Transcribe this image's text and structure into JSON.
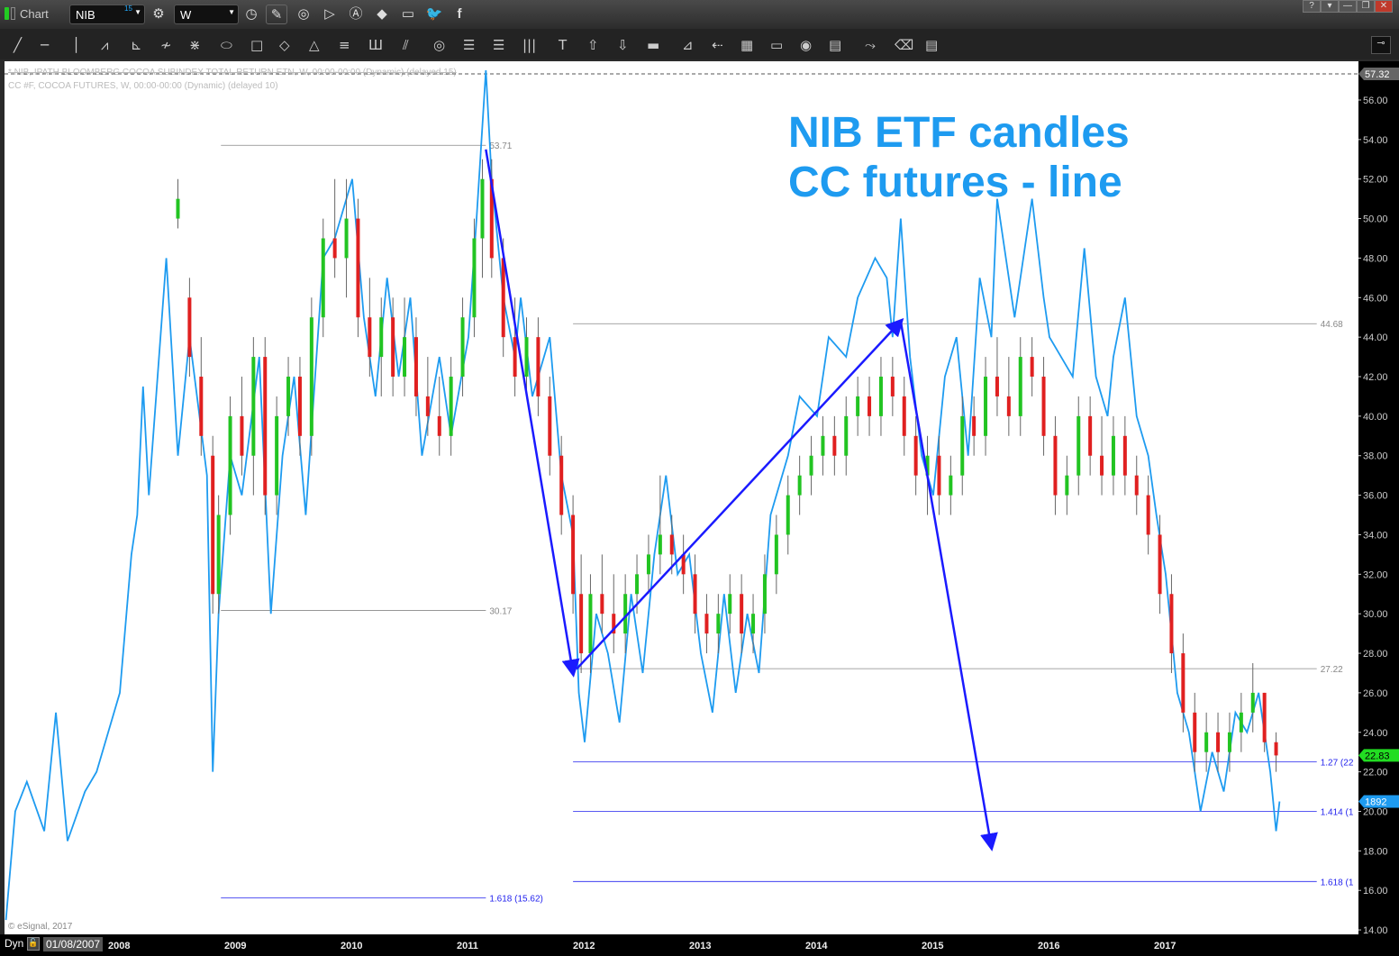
{
  "window": {
    "title": "Chart",
    "symbol": "NIB",
    "symbol_badge": "15",
    "interval": "W",
    "buttons": [
      "?",
      "▾",
      "—",
      "❐",
      "✕"
    ]
  },
  "toolbar_icons": [
    "line-tool",
    "horizontal-line-tool",
    "vertical-line-tool",
    "zigzag-tool",
    "fan-tool",
    "pitchfork-tool",
    "gann-fan-tool",
    "ellipse-tool",
    "rectangle-tool",
    "diamond-tool",
    "triangle-tool",
    "parallel-lines-tool",
    "cycle-lines-tool",
    "channel-tool",
    "circles-tool",
    "fib-retracement-tool",
    "time-lines-tool",
    "text-tool",
    "arrow-up-tool",
    "arrow-down-tool",
    "block-tool",
    "speed-lines-tool",
    "speed-arc-tool",
    "grid-tool",
    "mob-tool",
    "tj-tool",
    "pti-tool",
    "elliott-tool",
    "eraser-tool",
    "comment-tool",
    "magnet-tool"
  ],
  "legend": {
    "line1": "* NIB, IPATH BLOOMBERG COCOA SUBINDEX TOTAL RETURN ETN, W, 00:00-00:00 (Dynamic) (delayed 15)",
    "line2": "CC #F, COCOA FUTURES, W, 00:00-00:00 (Dynamic) (delayed 10)"
  },
  "annotation": {
    "line1": "NIB ETF candles",
    "line2": "CC futures - line",
    "color": "#1e9bf0"
  },
  "copyright": "© eSignal, 2017",
  "bottom": {
    "mode": "Dyn",
    "start_date": "01/08/2007"
  },
  "price_markers": {
    "high": "57.32",
    "nib_last": "22.83",
    "cc_last": "1892"
  },
  "colors": {
    "cc_line": "#1e9bf0",
    "up": "#22c422",
    "down": "#e02020",
    "neutral": "#777777",
    "arrow": "#1a1aff",
    "fib_gray": "#888888",
    "fib_blue": "#2222ee"
  },
  "chart_data": {
    "type": "line+candlestick",
    "y_ticks": [
      "14.00",
      "16.00",
      "18.00",
      "20.00",
      "22.00",
      "24.00",
      "26.00",
      "28.00",
      "30.00",
      "32.00",
      "34.00",
      "36.00",
      "38.00",
      "40.00",
      "42.00",
      "44.00",
      "46.00",
      "48.00",
      "50.00",
      "52.00",
      "54.00",
      "56.00"
    ],
    "x_ticks": [
      "2008",
      "2009",
      "2010",
      "2011",
      "2012",
      "2013",
      "2014",
      "2015",
      "2016",
      "2017"
    ],
    "ylim": [
      14,
      57.32
    ],
    "xlim": [
      2007.02,
      2018.6
    ],
    "fib_levels": [
      {
        "label": "53.71",
        "value": 53.71,
        "from": 2008.87,
        "to": 2011.15,
        "color": "gray"
      },
      {
        "label": "30.17",
        "value": 30.17,
        "from": 2008.87,
        "to": 2011.15,
        "color": "gray"
      },
      {
        "label": "1.618 (15.62)",
        "value": 15.62,
        "from": 2008.87,
        "to": 2011.15,
        "color": "blue"
      },
      {
        "label": "44.68",
        "value": 44.68,
        "from": 2011.9,
        "to": 2018.3,
        "color": "gray"
      },
      {
        "label": "27.22",
        "value": 27.22,
        "from": 2011.9,
        "to": 2018.3,
        "color": "gray"
      },
      {
        "label": "1.27 (22",
        "value": 22.5,
        "from": 2011.9,
        "to": 2018.3,
        "color": "blue"
      },
      {
        "label": "1.414 (1",
        "value": 20.0,
        "from": 2011.9,
        "to": 2018.3,
        "color": "blue"
      },
      {
        "label": "1.618 (1",
        "value": 16.45,
        "from": 2011.9,
        "to": 2018.3,
        "color": "blue"
      }
    ],
    "arrows": [
      [
        2011.15,
        53.5,
        2011.9,
        27.0
      ],
      [
        2011.93,
        27.2,
        2014.72,
        44.8
      ],
      [
        2014.72,
        44.8,
        2015.5,
        18.2
      ]
    ],
    "cc_line": [
      [
        2007.02,
        14.5
      ],
      [
        2007.1,
        20
      ],
      [
        2007.2,
        21.5
      ],
      [
        2007.35,
        19
      ],
      [
        2007.45,
        25
      ],
      [
        2007.55,
        18.5
      ],
      [
        2007.7,
        21
      ],
      [
        2007.8,
        22
      ],
      [
        2007.9,
        24
      ],
      [
        2008.0,
        26
      ],
      [
        2008.1,
        33
      ],
      [
        2008.15,
        35
      ],
      [
        2008.2,
        41.5
      ],
      [
        2008.25,
        36
      ],
      [
        2008.4,
        48
      ],
      [
        2008.5,
        38
      ],
      [
        2008.6,
        44
      ],
      [
        2008.75,
        37
      ],
      [
        2008.8,
        22
      ],
      [
        2008.85,
        30
      ],
      [
        2008.95,
        38
      ],
      [
        2009.05,
        36
      ],
      [
        2009.2,
        43
      ],
      [
        2009.3,
        30
      ],
      [
        2009.4,
        38
      ],
      [
        2009.5,
        42
      ],
      [
        2009.6,
        35
      ],
      [
        2009.75,
        48
      ],
      [
        2009.85,
        49
      ],
      [
        2010.0,
        52
      ],
      [
        2010.1,
        45
      ],
      [
        2010.2,
        41
      ],
      [
        2010.3,
        47
      ],
      [
        2010.4,
        42
      ],
      [
        2010.5,
        46
      ],
      [
        2010.6,
        38
      ],
      [
        2010.75,
        43
      ],
      [
        2010.85,
        39
      ],
      [
        2011.0,
        44
      ],
      [
        2011.07,
        50
      ],
      [
        2011.15,
        57.5
      ],
      [
        2011.2,
        52
      ],
      [
        2011.3,
        46
      ],
      [
        2011.4,
        43
      ],
      [
        2011.45,
        46
      ],
      [
        2011.55,
        41
      ],
      [
        2011.7,
        44
      ],
      [
        2011.8,
        37
      ],
      [
        2011.9,
        34
      ],
      [
        2011.95,
        26
      ],
      [
        2012.0,
        23.5
      ],
      [
        2012.1,
        30
      ],
      [
        2012.2,
        28
      ],
      [
        2012.3,
        24.5
      ],
      [
        2012.4,
        31
      ],
      [
        2012.5,
        27
      ],
      [
        2012.6,
        33
      ],
      [
        2012.7,
        37
      ],
      [
        2012.8,
        32
      ],
      [
        2012.9,
        33
      ],
      [
        2013.0,
        28
      ],
      [
        2013.1,
        25
      ],
      [
        2013.2,
        31
      ],
      [
        2013.3,
        26
      ],
      [
        2013.4,
        30
      ],
      [
        2013.5,
        27
      ],
      [
        2013.6,
        35
      ],
      [
        2013.75,
        38
      ],
      [
        2013.85,
        41
      ],
      [
        2014.0,
        40
      ],
      [
        2014.1,
        44
      ],
      [
        2014.25,
        43
      ],
      [
        2014.35,
        46
      ],
      [
        2014.5,
        48
      ],
      [
        2014.6,
        47
      ],
      [
        2014.65,
        44
      ],
      [
        2014.72,
        50
      ],
      [
        2014.8,
        43
      ],
      [
        2014.9,
        38
      ],
      [
        2015.0,
        36
      ],
      [
        2015.1,
        42
      ],
      [
        2015.2,
        44
      ],
      [
        2015.3,
        38
      ],
      [
        2015.4,
        47
      ],
      [
        2015.5,
        44
      ],
      [
        2015.55,
        51
      ],
      [
        2015.7,
        45
      ],
      [
        2015.85,
        51
      ],
      [
        2015.95,
        46
      ],
      [
        2016.0,
        44
      ],
      [
        2016.2,
        42
      ],
      [
        2016.3,
        48.5
      ],
      [
        2016.4,
        42
      ],
      [
        2016.5,
        40
      ],
      [
        2016.55,
        43
      ],
      [
        2016.65,
        46
      ],
      [
        2016.75,
        40
      ],
      [
        2016.85,
        38
      ],
      [
        2016.92,
        35
      ],
      [
        2017.0,
        32
      ],
      [
        2017.1,
        26
      ],
      [
        2017.2,
        24
      ],
      [
        2017.3,
        20
      ],
      [
        2017.4,
        23
      ],
      [
        2017.5,
        21
      ],
      [
        2017.6,
        25
      ],
      [
        2017.7,
        24
      ],
      [
        2017.8,
        26
      ],
      [
        2017.9,
        22
      ],
      [
        2017.95,
        19
      ],
      [
        2017.98,
        20.5
      ]
    ],
    "nib_candles": [
      [
        2008.5,
        50,
        52,
        49.5,
        51
      ],
      [
        2008.6,
        46,
        47,
        42,
        43
      ],
      [
        2008.7,
        42,
        44,
        38,
        39
      ],
      [
        2008.8,
        38,
        39,
        30,
        31
      ],
      [
        2008.85,
        31,
        36,
        30,
        35
      ],
      [
        2008.95,
        35,
        41,
        34,
        40
      ],
      [
        2009.05,
        40,
        42,
        37,
        38
      ],
      [
        2009.15,
        38,
        44,
        36,
        43
      ],
      [
        2009.25,
        43,
        44,
        35,
        36
      ],
      [
        2009.35,
        36,
        41,
        35,
        40
      ],
      [
        2009.45,
        40,
        43,
        39,
        42
      ],
      [
        2009.55,
        42,
        43,
        38,
        39
      ],
      [
        2009.65,
        39,
        46,
        38,
        45
      ],
      [
        2009.75,
        45,
        50,
        44,
        49
      ],
      [
        2009.85,
        49,
        52,
        47,
        48
      ],
      [
        2009.95,
        48,
        52,
        46,
        50
      ],
      [
        2010.05,
        50,
        51,
        44,
        45
      ],
      [
        2010.15,
        45,
        47,
        42,
        43
      ],
      [
        2010.25,
        43,
        46,
        41,
        45
      ],
      [
        2010.35,
        45,
        46,
        41,
        42
      ],
      [
        2010.45,
        42,
        46,
        41,
        44
      ],
      [
        2010.55,
        44,
        45,
        40,
        41
      ],
      [
        2010.65,
        41,
        43,
        39,
        40
      ],
      [
        2010.75,
        40,
        42,
        38,
        39
      ],
      [
        2010.85,
        39,
        43,
        38,
        42
      ],
      [
        2010.95,
        42,
        46,
        41,
        45
      ],
      [
        2011.05,
        45,
        50,
        44,
        49
      ],
      [
        2011.12,
        49,
        53,
        47,
        52
      ],
      [
        2011.2,
        52,
        53,
        47,
        48
      ],
      [
        2011.3,
        48,
        49,
        43,
        44
      ],
      [
        2011.4,
        44,
        46,
        41,
        42
      ],
      [
        2011.5,
        42,
        45,
        41,
        44
      ],
      [
        2011.6,
        44,
        45,
        40,
        41
      ],
      [
        2011.7,
        41,
        42,
        37,
        38
      ],
      [
        2011.8,
        38,
        39,
        34,
        35
      ],
      [
        2011.9,
        35,
        36,
        30,
        31
      ],
      [
        2011.97,
        31,
        33,
        27,
        28
      ],
      [
        2012.05,
        28,
        32,
        27,
        31
      ],
      [
        2012.15,
        31,
        33,
        29,
        30
      ],
      [
        2012.25,
        30,
        32,
        28,
        29
      ],
      [
        2012.35,
        29,
        32,
        28,
        31
      ],
      [
        2012.45,
        31,
        33,
        30,
        32
      ],
      [
        2012.55,
        32,
        34,
        31,
        33
      ],
      [
        2012.65,
        33,
        37,
        32,
        34
      ],
      [
        2012.75,
        34,
        35,
        32,
        33
      ],
      [
        2012.85,
        33,
        34,
        31,
        32
      ],
      [
        2012.95,
        32,
        33,
        29,
        30
      ],
      [
        2013.05,
        30,
        31,
        28,
        29
      ],
      [
        2013.15,
        29,
        31,
        28,
        30
      ],
      [
        2013.25,
        30,
        32,
        29,
        31
      ],
      [
        2013.35,
        31,
        32,
        28,
        29
      ],
      [
        2013.45,
        29,
        31,
        28,
        30
      ],
      [
        2013.55,
        30,
        33,
        29,
        32
      ],
      [
        2013.65,
        32,
        35,
        31,
        34
      ],
      [
        2013.75,
        34,
        37,
        33,
        36
      ],
      [
        2013.85,
        36,
        38,
        35,
        37
      ],
      [
        2013.95,
        37,
        39,
        36,
        38
      ],
      [
        2014.05,
        38,
        40,
        37,
        39
      ],
      [
        2014.15,
        39,
        40,
        37,
        38
      ],
      [
        2014.25,
        38,
        41,
        37,
        40
      ],
      [
        2014.35,
        40,
        42,
        39,
        41
      ],
      [
        2014.45,
        41,
        42,
        39,
        40
      ],
      [
        2014.55,
        40,
        43,
        39,
        42
      ],
      [
        2014.65,
        42,
        43,
        40,
        41
      ],
      [
        2014.75,
        41,
        42,
        38,
        39
      ],
      [
        2014.85,
        39,
        40,
        36,
        37
      ],
      [
        2014.95,
        37,
        39,
        35,
        38
      ],
      [
        2015.05,
        38,
        39,
        35,
        36
      ],
      [
        2015.15,
        36,
        38,
        35,
        37
      ],
      [
        2015.25,
        37,
        41,
        36,
        40
      ],
      [
        2015.35,
        40,
        41,
        38,
        39
      ],
      [
        2015.45,
        39,
        43,
        38,
        42
      ],
      [
        2015.55,
        42,
        44,
        40,
        41
      ],
      [
        2015.65,
        41,
        43,
        39,
        40
      ],
      [
        2015.75,
        40,
        44,
        39,
        43
      ],
      [
        2015.85,
        43,
        44,
        41,
        42
      ],
      [
        2015.95,
        42,
        43,
        38,
        39
      ],
      [
        2016.05,
        39,
        40,
        35,
        36
      ],
      [
        2016.15,
        36,
        38,
        35,
        37
      ],
      [
        2016.25,
        37,
        41,
        36,
        40
      ],
      [
        2016.35,
        40,
        41,
        37,
        38
      ],
      [
        2016.45,
        38,
        40,
        36,
        37
      ],
      [
        2016.55,
        37,
        40,
        36,
        39
      ],
      [
        2016.65,
        39,
        40,
        36,
        37
      ],
      [
        2016.75,
        37,
        38,
        35,
        36
      ],
      [
        2016.85,
        36,
        37,
        33,
        34
      ],
      [
        2016.95,
        34,
        35,
        30,
        31
      ],
      [
        2017.05,
        31,
        32,
        27,
        28
      ],
      [
        2017.15,
        28,
        29,
        24,
        25
      ],
      [
        2017.25,
        25,
        26,
        22,
        23
      ],
      [
        2017.35,
        23,
        25,
        22,
        24
      ],
      [
        2017.45,
        24,
        25,
        22,
        23
      ],
      [
        2017.55,
        23,
        25,
        22,
        24
      ],
      [
        2017.65,
        24,
        26,
        23,
        25
      ],
      [
        2017.75,
        25,
        27.5,
        24,
        26
      ],
      [
        2017.85,
        26,
        26,
        23,
        23.5
      ],
      [
        2017.95,
        23.5,
        24,
        22,
        22.83
      ]
    ]
  }
}
